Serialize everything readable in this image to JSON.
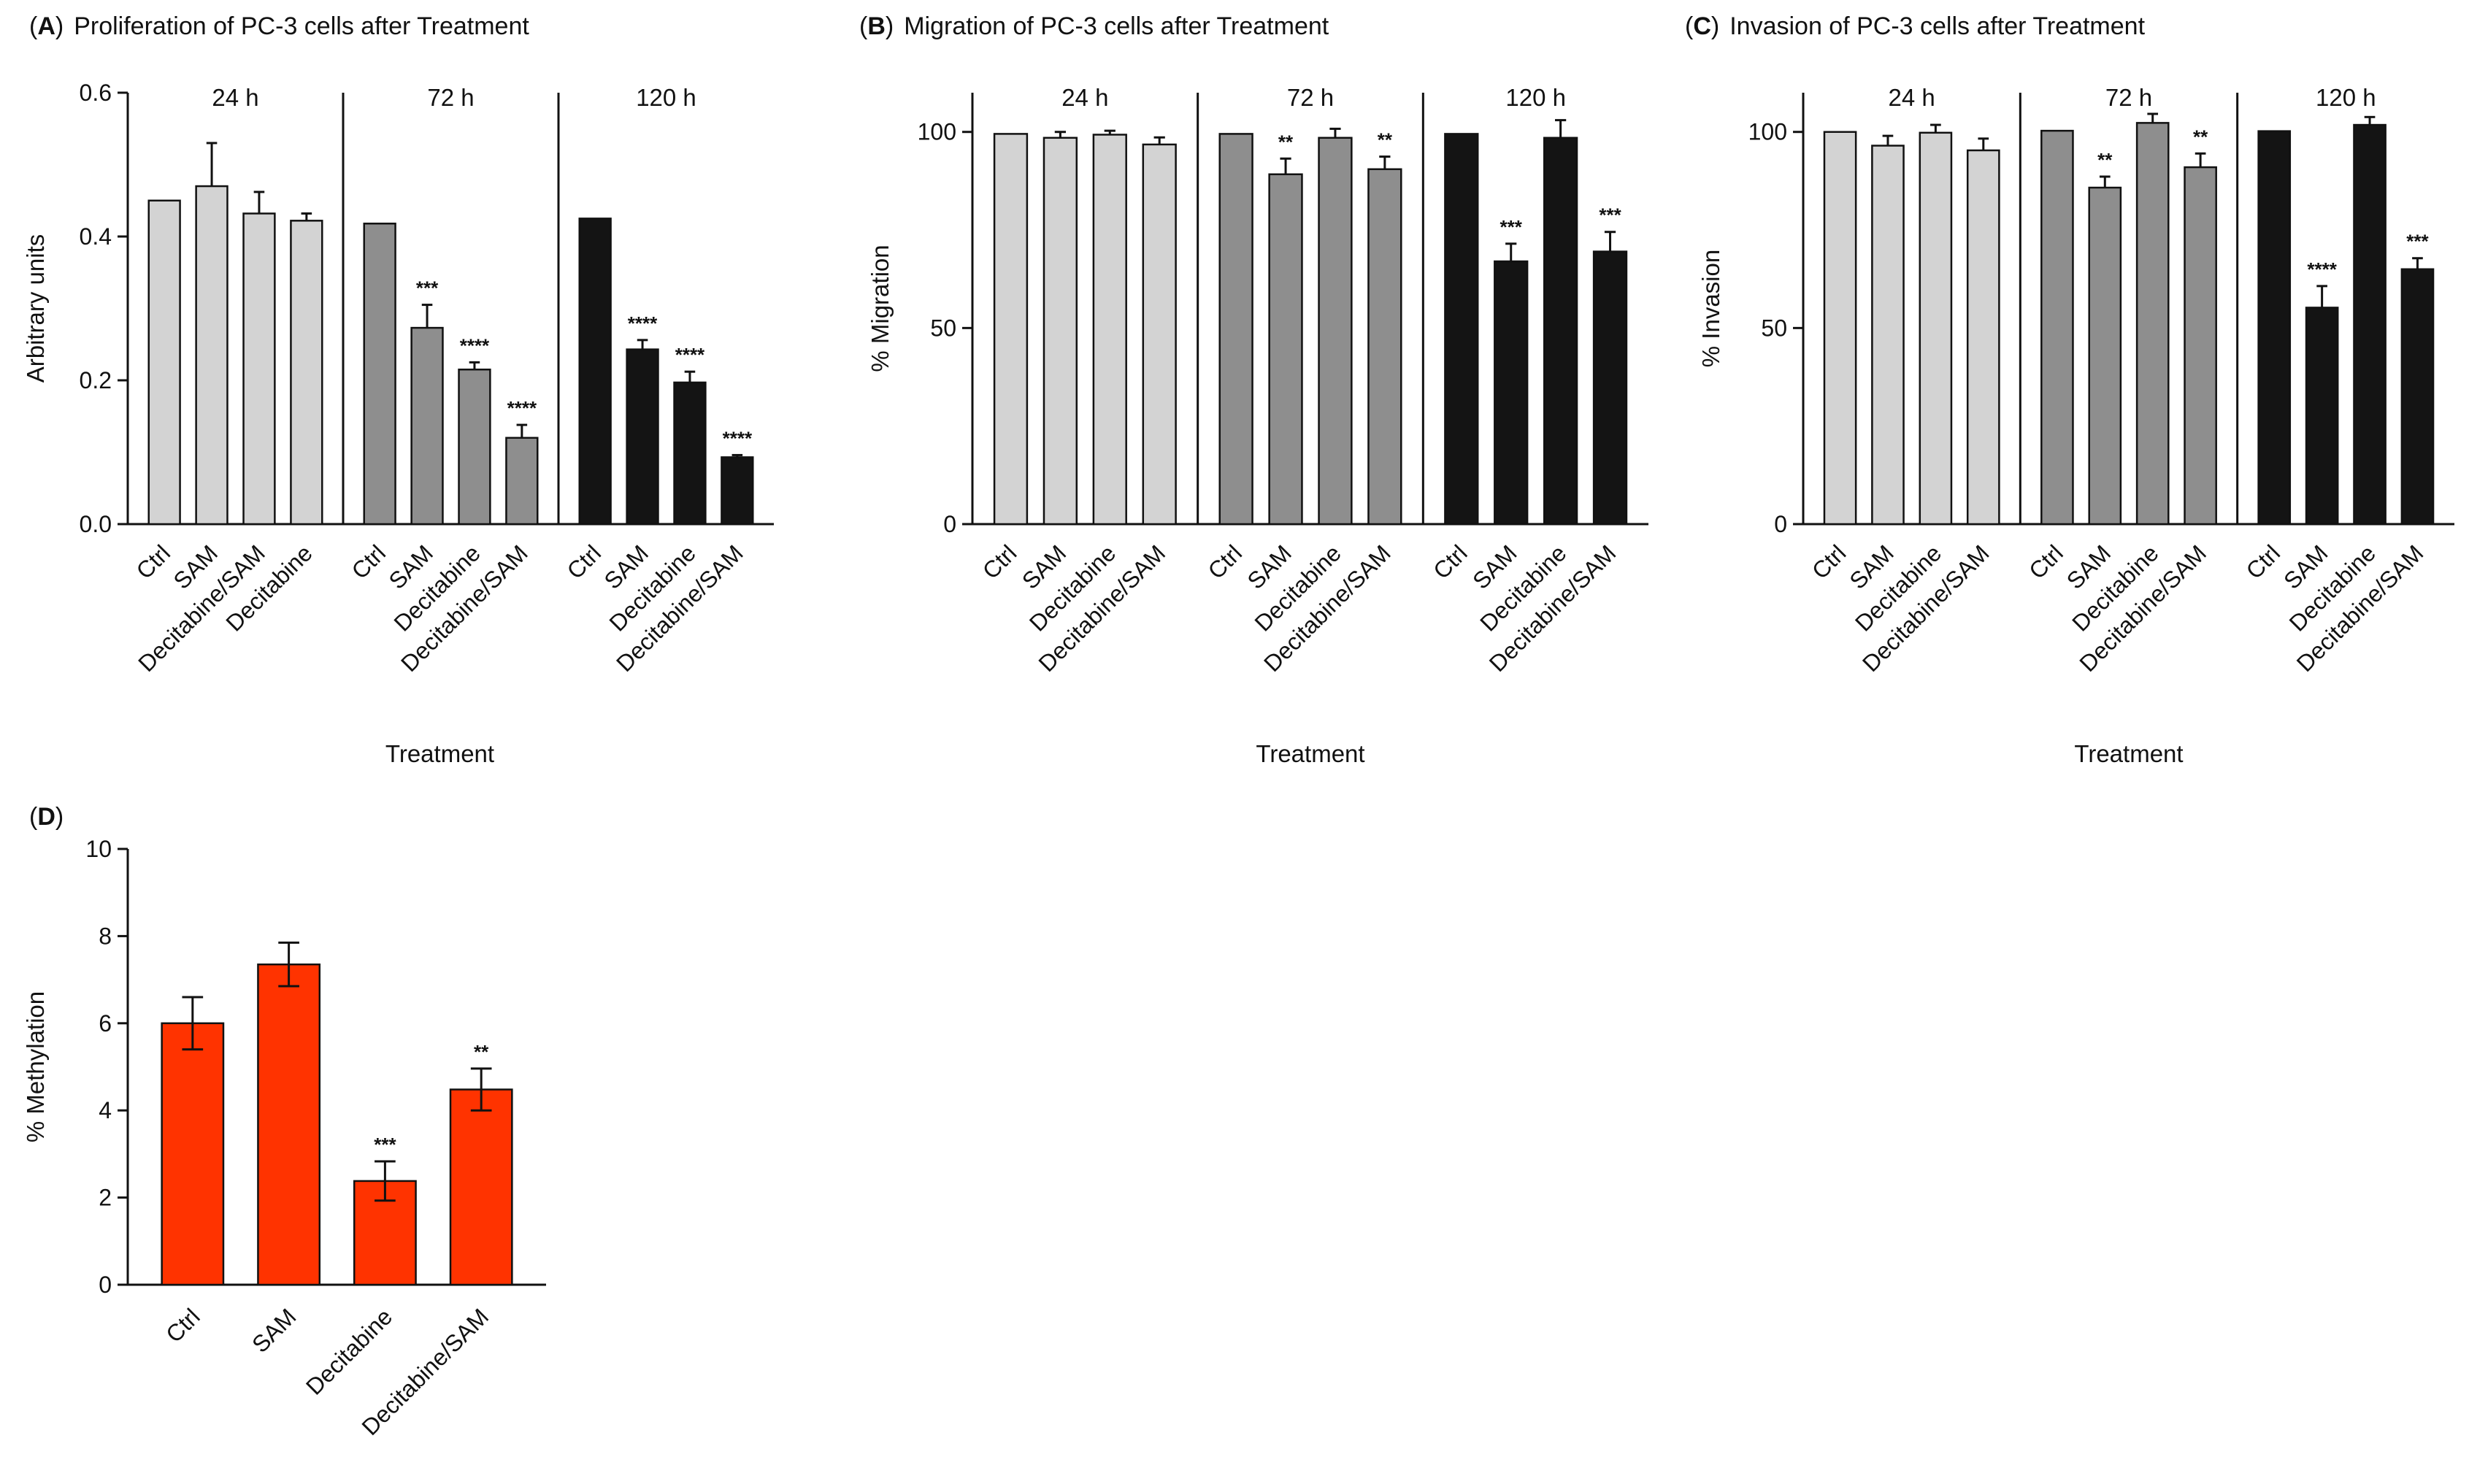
{
  "colors": {
    "t24": "#d3d3d3",
    "t72": "#8e8e8e",
    "t120": "#141414",
    "methylation": "#ff3300",
    "axis": "#111111"
  },
  "chart_data": [
    {
      "id": "A",
      "type": "bar",
      "letter": "A",
      "title": "Proliferation of PC-3 cells after Treatment",
      "ylabel": "Arbitrary units",
      "xlabel": "Treatment",
      "ylim": [
        0,
        0.6
      ],
      "yticks": [
        0.0,
        0.2,
        0.4,
        0.6
      ],
      "ytick_labels": [
        "0.0",
        "0.2",
        "0.4",
        "0.6"
      ],
      "groups": [
        {
          "label": "24 h",
          "color_key": "t24",
          "bars": [
            {
              "category": "Ctrl",
              "value": 0.45,
              "error": 0,
              "sig": ""
            },
            {
              "category": "SAM",
              "value": 0.47,
              "error": 0.06,
              "sig": ""
            },
            {
              "category": "Decitabine/SAM",
              "value": 0.432,
              "error": 0.03,
              "sig": ""
            },
            {
              "category": "Decitabine",
              "value": 0.422,
              "error": 0.01,
              "sig": ""
            }
          ]
        },
        {
          "label": "72 h",
          "color_key": "t72",
          "bars": [
            {
              "category": "Ctrl",
              "value": 0.418,
              "error": 0,
              "sig": ""
            },
            {
              "category": "SAM",
              "value": 0.273,
              "error": 0.032,
              "sig": "***"
            },
            {
              "category": "Decitabine",
              "value": 0.215,
              "error": 0.01,
              "sig": "****"
            },
            {
              "category": "Decitabine/SAM",
              "value": 0.12,
              "error": 0.018,
              "sig": "****"
            }
          ]
        },
        {
          "label": "120 h",
          "color_key": "t120",
          "bars": [
            {
              "category": "Ctrl",
              "value": 0.425,
              "error": 0,
              "sig": ""
            },
            {
              "category": "SAM",
              "value": 0.243,
              "error": 0.013,
              "sig": "****"
            },
            {
              "category": "Decitabine",
              "value": 0.197,
              "error": 0.015,
              "sig": "****"
            },
            {
              "category": "Decitabine/SAM",
              "value": 0.093,
              "error": 0.003,
              "sig": "****"
            }
          ]
        }
      ]
    },
    {
      "id": "B",
      "type": "bar",
      "letter": "B",
      "title": "Migration of PC-3 cells after Treatment",
      "ylabel": "% Migration",
      "xlabel": "Treatment",
      "ylim": [
        0,
        110
      ],
      "yticks": [
        0,
        50,
        100
      ],
      "ytick_labels": [
        "0",
        "50",
        "100"
      ],
      "groups": [
        {
          "label": "24 h",
          "color_key": "t24",
          "bars": [
            {
              "category": "Ctrl",
              "value": 99.5,
              "error": 0,
              "sig": ""
            },
            {
              "category": "SAM",
              "value": 98.5,
              "error": 1.5,
              "sig": ""
            },
            {
              "category": "Decitabine",
              "value": 99.3,
              "error": 1.0,
              "sig": ""
            },
            {
              "category": "Decitabine/SAM",
              "value": 96.8,
              "error": 1.8,
              "sig": ""
            }
          ]
        },
        {
          "label": "72 h",
          "color_key": "t72",
          "bars": [
            {
              "category": "Ctrl",
              "value": 99.5,
              "error": 0,
              "sig": ""
            },
            {
              "category": "SAM",
              "value": 89.2,
              "error": 4.0,
              "sig": "**"
            },
            {
              "category": "Decitabine",
              "value": 98.5,
              "error": 2.3,
              "sig": ""
            },
            {
              "category": "Decitabine/SAM",
              "value": 90.5,
              "error": 3.2,
              "sig": "**"
            }
          ]
        },
        {
          "label": "120 h",
          "color_key": "t120",
          "bars": [
            {
              "category": "Ctrl",
              "value": 99.5,
              "error": 0,
              "sig": ""
            },
            {
              "category": "SAM",
              "value": 67.0,
              "error": 4.5,
              "sig": "***"
            },
            {
              "category": "Decitabine",
              "value": 98.5,
              "error": 4.5,
              "sig": ""
            },
            {
              "category": "Decitabine/SAM",
              "value": 69.5,
              "error": 5.0,
              "sig": "***"
            }
          ]
        }
      ]
    },
    {
      "id": "C",
      "type": "bar",
      "letter": "C",
      "title": "Invasion of PC-3 cells after Treatment",
      "ylabel": "% Invasion",
      "xlabel": "Treatment",
      "ylim": [
        0,
        110
      ],
      "yticks": [
        0,
        50,
        100
      ],
      "ytick_labels": [
        "0",
        "50",
        "100"
      ],
      "groups": [
        {
          "label": "24 h",
          "color_key": "t24",
          "bars": [
            {
              "category": "Ctrl",
              "value": 100,
              "error": 0,
              "sig": ""
            },
            {
              "category": "SAM",
              "value": 96.5,
              "error": 2.5,
              "sig": ""
            },
            {
              "category": "Decitabine",
              "value": 99.8,
              "error": 2.0,
              "sig": ""
            },
            {
              "category": "Decitabine/SAM",
              "value": 95.3,
              "error": 3.0,
              "sig": ""
            }
          ]
        },
        {
          "label": "72 h",
          "color_key": "t72",
          "bars": [
            {
              "category": "Ctrl",
              "value": 100.3,
              "error": 0,
              "sig": ""
            },
            {
              "category": "SAM",
              "value": 85.8,
              "error": 2.8,
              "sig": "**"
            },
            {
              "category": "Decitabine",
              "value": 102.3,
              "error": 2.3,
              "sig": ""
            },
            {
              "category": "Decitabine/SAM",
              "value": 91.0,
              "error": 3.5,
              "sig": "**"
            }
          ]
        },
        {
          "label": "120 h",
          "color_key": "t120",
          "bars": [
            {
              "category": "Ctrl",
              "value": 100.2,
              "error": 0,
              "sig": ""
            },
            {
              "category": "SAM",
              "value": 55.2,
              "error": 5.5,
              "sig": "****"
            },
            {
              "category": "Decitabine",
              "value": 101.8,
              "error": 2.0,
              "sig": ""
            },
            {
              "category": "Decitabine/SAM",
              "value": 65.0,
              "error": 2.8,
              "sig": "***"
            }
          ]
        }
      ]
    },
    {
      "id": "D",
      "type": "bar",
      "letter": "D",
      "title": "",
      "ylabel": "% Methylation",
      "xlabel": "",
      "ylim": [
        0,
        10
      ],
      "yticks": [
        0,
        2,
        4,
        6,
        8,
        10
      ],
      "ytick_labels": [
        "0",
        "2",
        "4",
        "6",
        "8",
        "10"
      ],
      "groups": [
        {
          "label": "",
          "color_key": "methylation",
          "bars": [
            {
              "category": "Ctrl",
              "value": 6.0,
              "error": 0.6,
              "sig": ""
            },
            {
              "category": "SAM",
              "value": 7.35,
              "error": 0.5,
              "sig": ""
            },
            {
              "category": "Decitabine",
              "value": 2.38,
              "error": 0.45,
              "sig": "***"
            },
            {
              "category": "Decitabine/SAM",
              "value": 4.48,
              "error": 0.48,
              "sig": "**"
            }
          ]
        }
      ]
    }
  ]
}
